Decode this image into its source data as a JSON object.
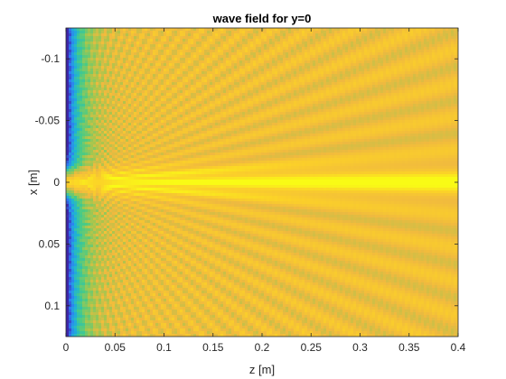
{
  "chart_data": {
    "type": "heatmap",
    "title": "wave field for y=0",
    "xlabel": "z [m]",
    "ylabel": "x [m]",
    "xlim": [
      0,
      0.4
    ],
    "ylim": [
      -0.125,
      0.125
    ],
    "y_axis_direction": "reversed",
    "xticks": [
      0,
      0.05,
      0.1,
      0.15,
      0.2,
      0.25,
      0.3,
      0.35,
      0.4
    ],
    "xtick_labels": [
      "0",
      "0.05",
      "0.1",
      "0.15",
      "0.2",
      "0.25",
      "0.3",
      "0.35",
      "0.4"
    ],
    "yticks": [
      -0.1,
      -0.05,
      0,
      0.05,
      0.1
    ],
    "ytick_labels": [
      "-0.1",
      "-0.05",
      "0",
      "0.05",
      "0.1"
    ],
    "grid": false,
    "legend": "none",
    "colormap": [
      "#3e26a8",
      "#2f7cf5",
      "#1eb4d4",
      "#48cb86",
      "#a6c64e",
      "#f0b93f",
      "#fbd029",
      "#f9fb15"
    ],
    "colors": {
      "background": "#ffffff",
      "axes_box": "#262626",
      "text": "#262626"
    }
  }
}
